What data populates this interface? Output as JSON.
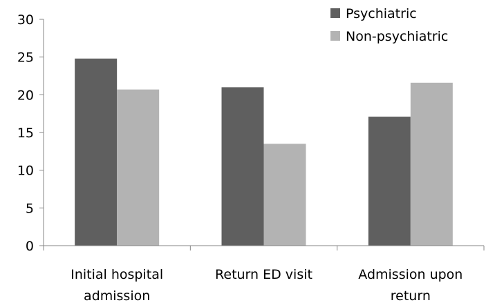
{
  "chart_data": {
    "type": "bar",
    "title": "",
    "xlabel": "",
    "ylabel": "",
    "ylim": [
      0,
      30
    ],
    "yticks": [
      0,
      5,
      10,
      15,
      20,
      25,
      30
    ],
    "ytick_labels": [
      "0",
      "5",
      "10",
      "15",
      "20",
      "25",
      "30"
    ],
    "grid": false,
    "legend_position": "top-right",
    "categories": [
      [
        "Initial hospital",
        "admission"
      ],
      [
        "Return ED visit"
      ],
      [
        "Admission upon",
        "return"
      ]
    ],
    "series": [
      {
        "name": "Psychiatric",
        "color": "#5f5f5f",
        "values": [
          24.8,
          21.0,
          17.1
        ]
      },
      {
        "name": "Non-psychiatric",
        "color": "#b3b3b3",
        "values": [
          20.7,
          13.5,
          21.6
        ]
      }
    ]
  }
}
